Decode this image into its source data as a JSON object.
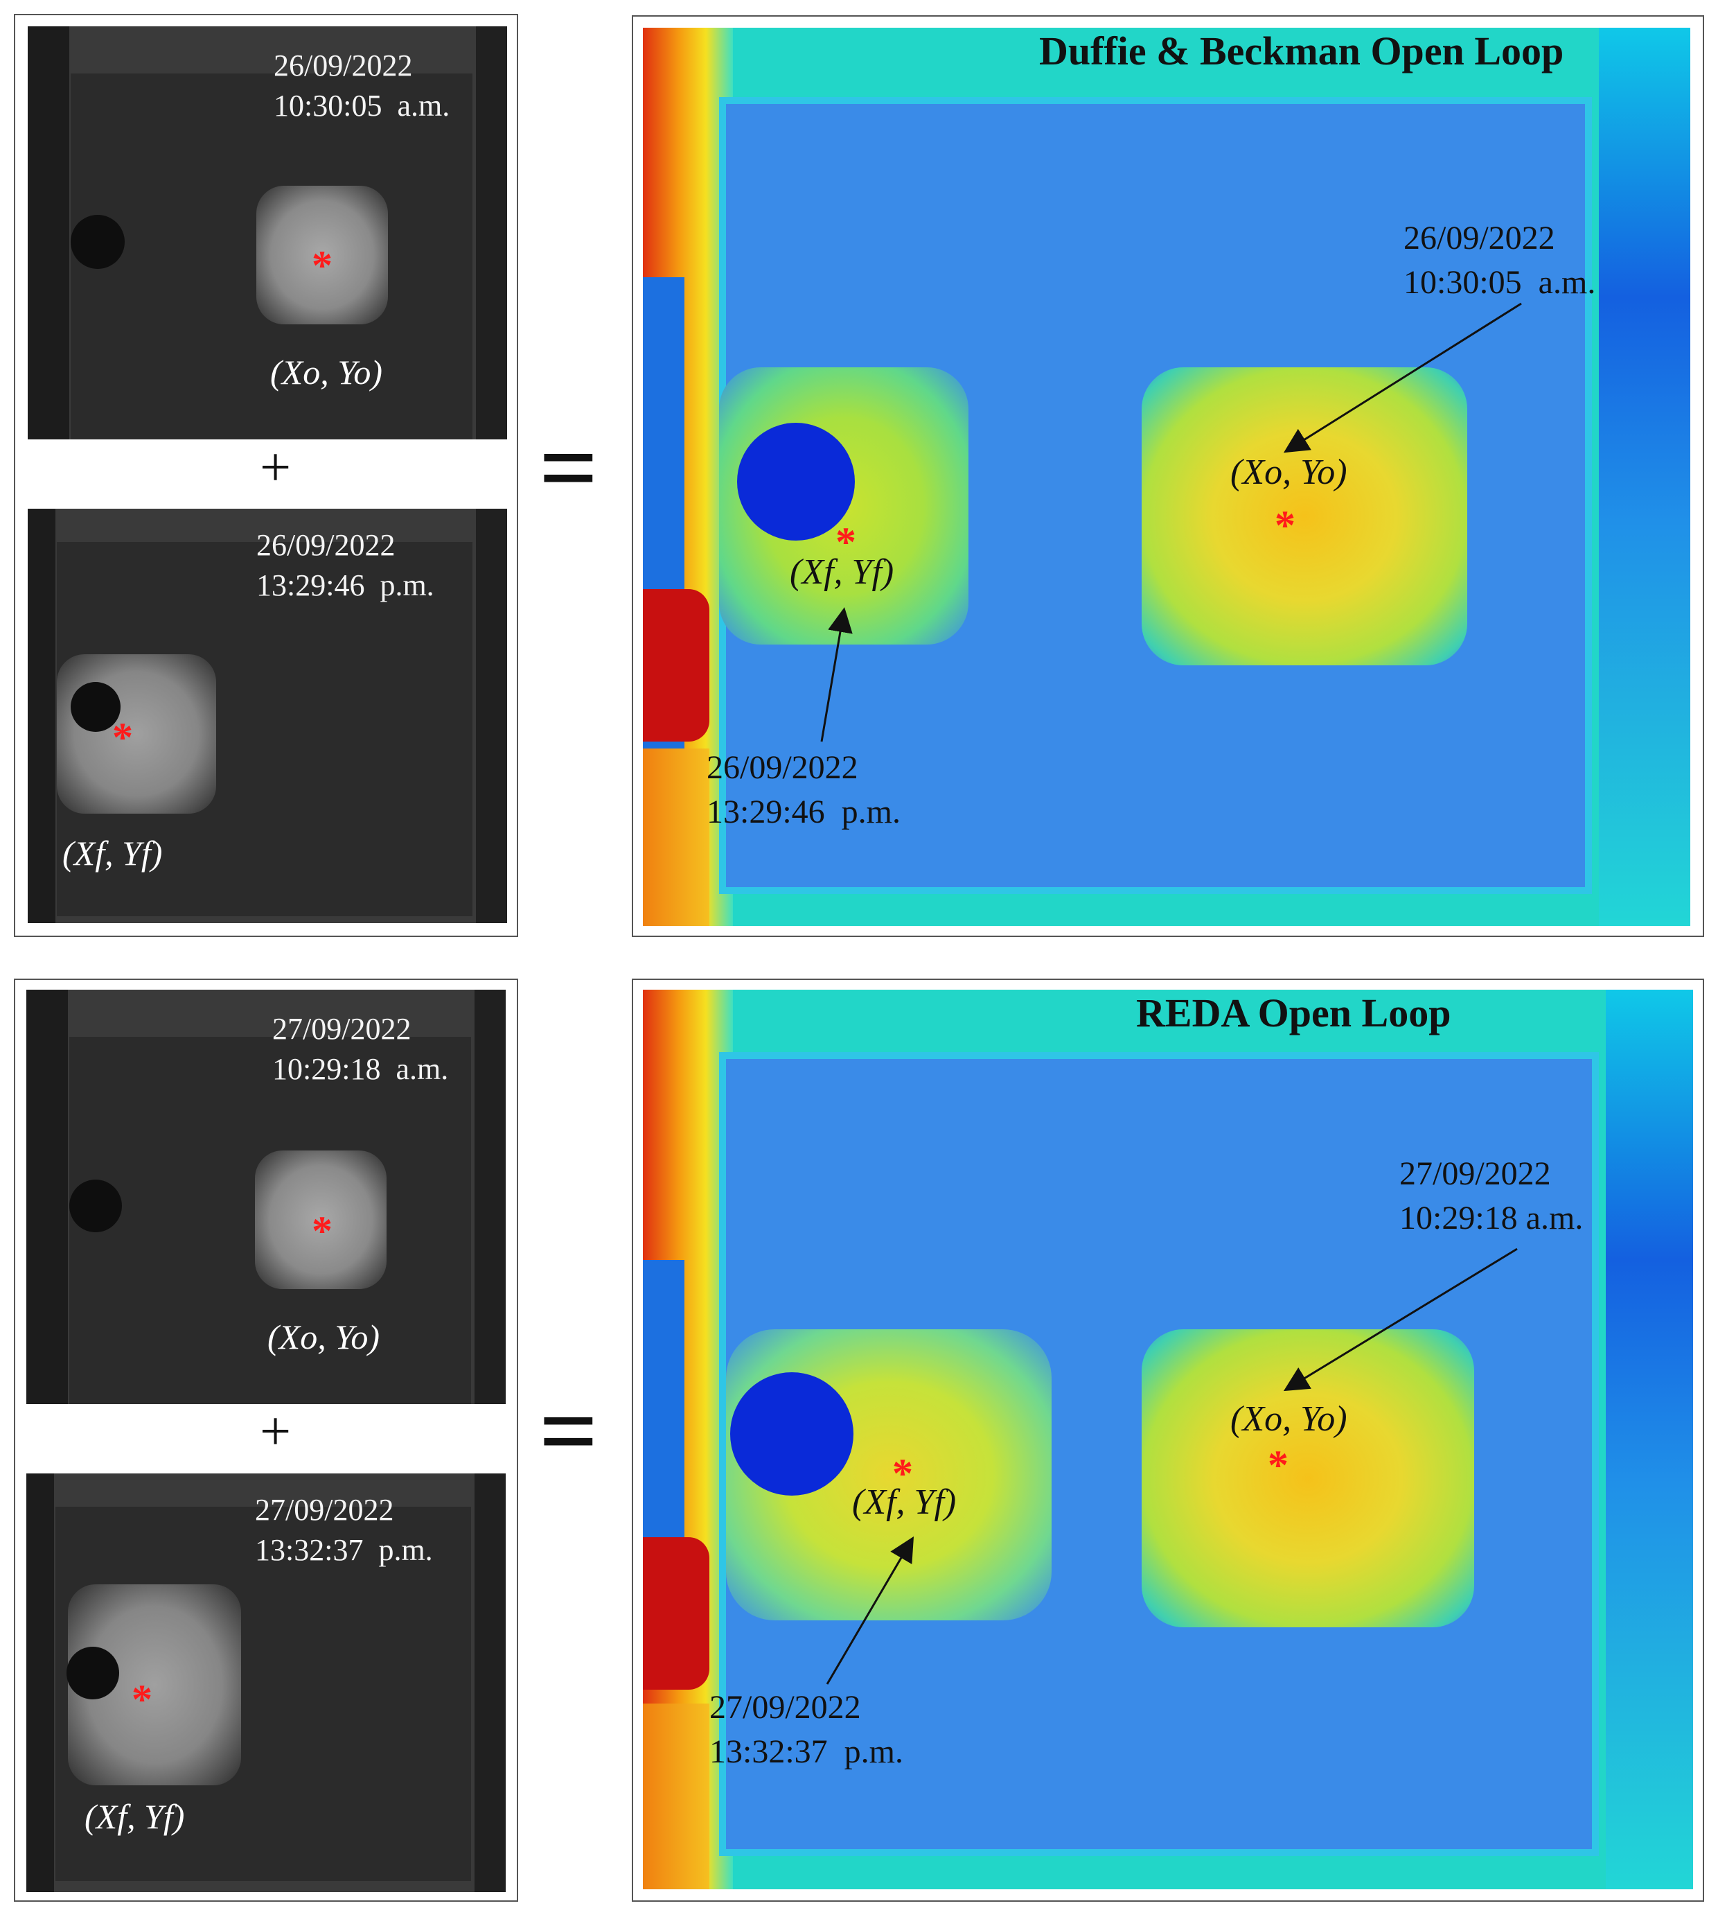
{
  "top": {
    "gray_open": {
      "date": "26/09/2022",
      "time": "10:30:05  a.m.",
      "coord": "(Xo, Yo)"
    },
    "plus": "+",
    "gray_final": {
      "date": "26/09/2022",
      "time": "13:29:46  p.m.",
      "coord": "(Xf, Yf)"
    },
    "equals": "=",
    "heatmap": {
      "title": "Duffie & Beckman Open Loop",
      "open": {
        "date": "26/09/2022",
        "time": "10:30:05  a.m.",
        "coord": "(Xo, Yo)"
      },
      "final": {
        "date": "26/09/2022",
        "time": "13:29:46  p.m.",
        "coord": "(Xf, Yf)"
      }
    }
  },
  "bottom": {
    "gray_open": {
      "date": "27/09/2022",
      "time": "10:29:18  a.m.",
      "coord": "(Xo, Yo)"
    },
    "plus": "+",
    "gray_final": {
      "date": "27/09/2022",
      "time": "13:32:37  p.m.",
      "coord": "(Xf, Yf)"
    },
    "equals": "=",
    "heatmap": {
      "title": "REDA Open Loop",
      "open": {
        "date": "27/09/2022",
        "time": "10:29:18 a.m.",
        "coord": "(Xo, Yo)"
      },
      "final": {
        "date": "27/09/2022",
        "time": "13:32:37  p.m.",
        "coord": "(Xf, Yf)"
      }
    }
  },
  "colors": {
    "marker": "#ff1a1a",
    "heat_bg": "#3f8fe6",
    "heat_hot": "#f5d21a",
    "heat_edge": "#12e0e0"
  },
  "icons": {
    "marker": "asterisk-marker"
  }
}
